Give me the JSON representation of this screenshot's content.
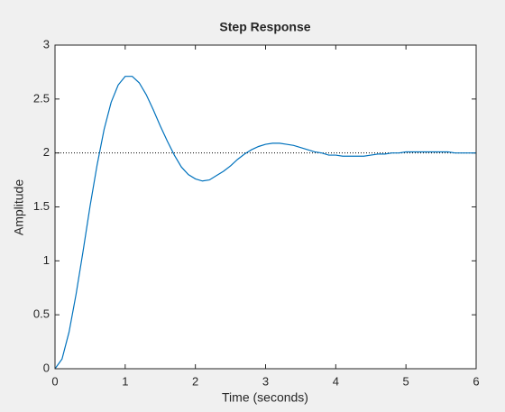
{
  "chart_data": {
    "type": "line",
    "title": "Step Response",
    "xlabel": "Time (seconds)",
    "ylabel": "Amplitude",
    "x": [
      0,
      0.1,
      0.2,
      0.3,
      0.4,
      0.5,
      0.6,
      0.7,
      0.8,
      0.9,
      1.0,
      1.1,
      1.2,
      1.3,
      1.4,
      1.5,
      1.6,
      1.7,
      1.8,
      1.9,
      2.0,
      2.1,
      2.2,
      2.3,
      2.4,
      2.5,
      2.6,
      2.7,
      2.8,
      2.9,
      3.0,
      3.1,
      3.2,
      3.3,
      3.4,
      3.5,
      3.6,
      3.7,
      3.8,
      3.9,
      4.0,
      4.1,
      4.2,
      4.3,
      4.4,
      4.5,
      4.6,
      4.7,
      4.8,
      4.9,
      5.0,
      5.1,
      5.2,
      5.3,
      5.4,
      5.5,
      5.6,
      5.7,
      5.8,
      5.9,
      6.0
    ],
    "series": [
      {
        "color": "#0072bd",
        "values": [
          0,
          0.09,
          0.34,
          0.69,
          1.09,
          1.51,
          1.89,
          2.22,
          2.47,
          2.63,
          2.71,
          2.71,
          2.65,
          2.54,
          2.4,
          2.25,
          2.11,
          1.98,
          1.87,
          1.8,
          1.76,
          1.74,
          1.75,
          1.79,
          1.83,
          1.88,
          1.94,
          1.99,
          2.03,
          2.06,
          2.08,
          2.09,
          2.09,
          2.08,
          2.07,
          2.05,
          2.03,
          2.01,
          2.0,
          1.98,
          1.98,
          1.97,
          1.97,
          1.97,
          1.97,
          1.98,
          1.99,
          1.99,
          2.0,
          2.0,
          2.01,
          2.01,
          2.01,
          2.01,
          2.01,
          2.01,
          2.01,
          2.0,
          2.0,
          2.0,
          2.0
        ]
      }
    ],
    "steady_state": 2,
    "xlim": [
      0,
      6
    ],
    "xticks": [
      0,
      1,
      2,
      3,
      4,
      5,
      6
    ],
    "ylim": [
      0,
      3
    ],
    "yticks": [
      0,
      0.5,
      1,
      1.5,
      2,
      2.5,
      3
    ],
    "grid": false
  }
}
